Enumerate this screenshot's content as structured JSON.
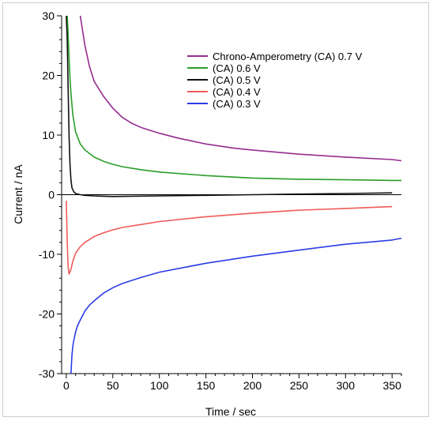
{
  "chart_data": {
    "type": "line",
    "title": "",
    "xlabel": "Time / sec",
    "ylabel": "Current / nA",
    "xlim": [
      -5,
      360
    ],
    "ylim": [
      -30,
      30
    ],
    "x_ticks": [
      0,
      50,
      100,
      150,
      200,
      250,
      300,
      350
    ],
    "y_ticks": [
      -30,
      -20,
      -10,
      0,
      10,
      20,
      30
    ],
    "grid": false,
    "legend_position": "top-right",
    "series": [
      {
        "name": "Chrono-Amperometry (CA) 0.7 V",
        "color": "#952c8e",
        "x": [
          15,
          20,
          25,
          30,
          40,
          50,
          60,
          70,
          80,
          100,
          120,
          150,
          180,
          200,
          250,
          300,
          350,
          360
        ],
        "y": [
          30,
          25,
          21.5,
          19,
          16.5,
          14.5,
          13,
          12,
          11.3,
          10.3,
          9.5,
          8.5,
          7.8,
          7.5,
          6.8,
          6.3,
          5.9,
          5.7
        ]
      },
      {
        "name": "(CA) 0.6 V",
        "color": "#2a9d28",
        "x": [
          1,
          2,
          3,
          4,
          5,
          7,
          10,
          15,
          20,
          30,
          40,
          50,
          60,
          80,
          100,
          150,
          200,
          250,
          300,
          350,
          360
        ],
        "y": [
          30,
          27,
          23,
          19.5,
          17,
          13.5,
          10.5,
          8.5,
          7.5,
          6.3,
          5.6,
          5.1,
          4.7,
          4.2,
          3.8,
          3.2,
          2.8,
          2.6,
          2.5,
          2.4,
          2.4
        ]
      },
      {
        "name": "(CA) 0.5 V",
        "color": "#111111",
        "x": [
          0,
          1,
          2,
          3,
          4,
          5,
          6,
          8,
          10,
          15,
          20,
          30,
          50,
          100,
          150,
          200,
          250,
          300,
          350
        ],
        "y": [
          30,
          26,
          18,
          10,
          5,
          2.5,
          1.2,
          0.5,
          0.2,
          0,
          -0.1,
          -0.2,
          -0.3,
          -0.2,
          -0.1,
          0,
          0.1,
          0.2,
          0.3
        ]
      },
      {
        "name": "(CA) 0.4 V",
        "color": "#f05a5a",
        "x": [
          0,
          1,
          2,
          3,
          5,
          7,
          10,
          15,
          20,
          30,
          40,
          50,
          60,
          80,
          100,
          150,
          200,
          250,
          300,
          350
        ],
        "y": [
          -1,
          -8,
          -12,
          -13.3,
          -12.5,
          -11.2,
          -9.8,
          -8.7,
          -8,
          -7,
          -6.4,
          -5.9,
          -5.5,
          -5,
          -4.5,
          -3.7,
          -3.1,
          -2.6,
          -2.3,
          -2
        ]
      },
      {
        "name": "(CA) 0.3 V",
        "color": "#2a3de6",
        "x": [
          5,
          6,
          7,
          8,
          10,
          12,
          15,
          20,
          25,
          30,
          40,
          50,
          60,
          80,
          100,
          150,
          200,
          250,
          300,
          350,
          360
        ],
        "y": [
          -30,
          -27,
          -25.5,
          -24.5,
          -23,
          -22,
          -21,
          -19.5,
          -18.5,
          -17.8,
          -16.5,
          -15.6,
          -14.9,
          -13.9,
          -13,
          -11.5,
          -10.3,
          -9.3,
          -8.3,
          -7.6,
          -7.3
        ]
      }
    ]
  }
}
